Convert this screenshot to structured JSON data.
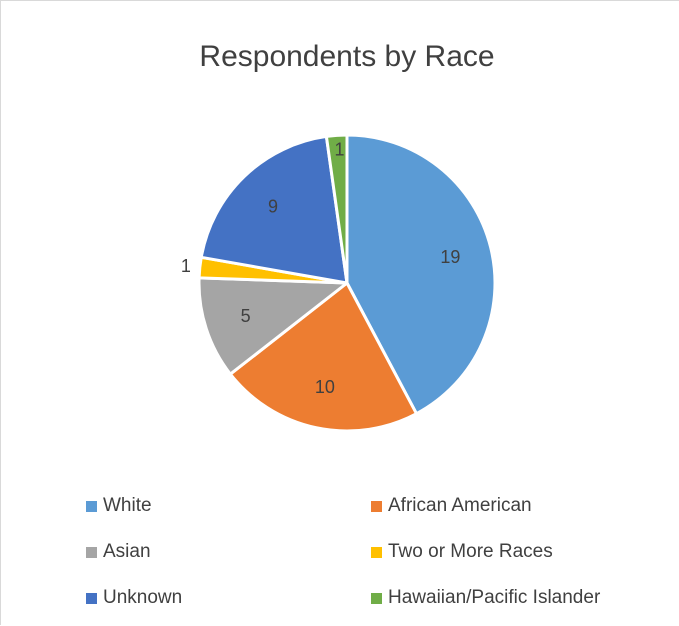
{
  "chart_data": {
    "type": "pie",
    "title": "Respondents by Race",
    "slices": [
      {
        "name": "White",
        "value": 19,
        "label": "19",
        "color": "#5b9bd5"
      },
      {
        "name": "African American",
        "value": 10,
        "label": "10",
        "color": "#ed7d31"
      },
      {
        "name": "Asian",
        "value": 5,
        "label": "5",
        "color": "#a5a5a5"
      },
      {
        "name": "Two or More Races",
        "value": 1,
        "label": "1",
        "color": "#ffc000"
      },
      {
        "name": "Unknown",
        "value": 9,
        "label": "9",
        "color": "#4472c4"
      },
      {
        "name": "Hawaiian/Pacific Islander",
        "value": 1,
        "label": "1",
        "color": "#70ad47"
      }
    ],
    "legend_position": "bottom",
    "legend_order": [
      "White",
      "African American",
      "Asian",
      "Two or More Races",
      "Unknown",
      "Hawaiian/Pacific Islander"
    ]
  }
}
